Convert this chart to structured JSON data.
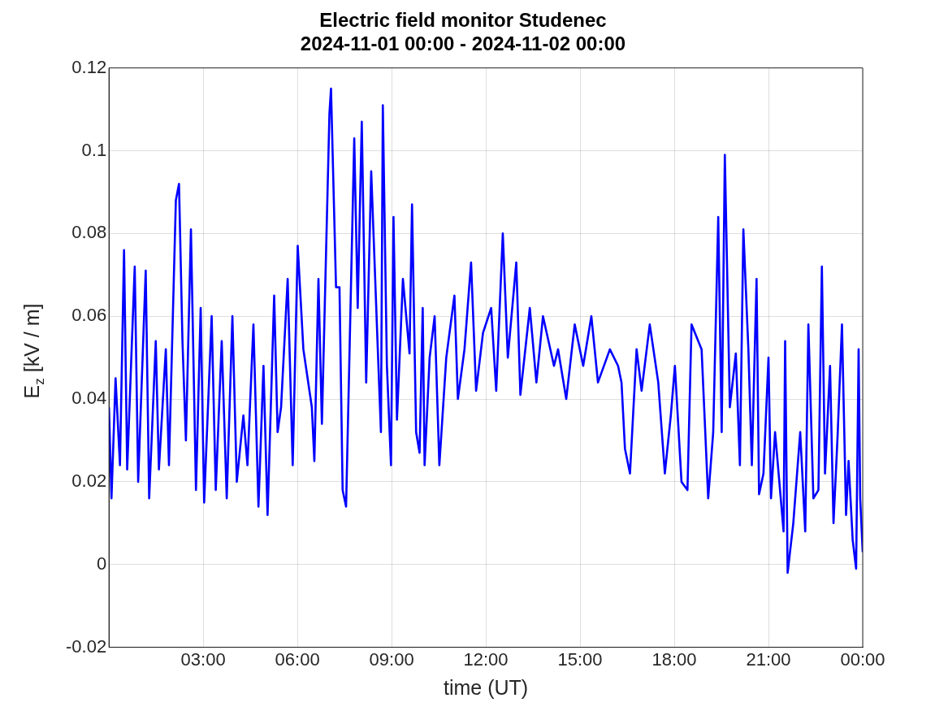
{
  "chart_data": {
    "type": "line",
    "title": "Electric field monitor Studenec",
    "subtitle": "2024-11-01 00:00 - 2024-11-02 00:00",
    "xlabel": "time (UT)",
    "ylabel": "E$_{z}$ [kV / m]",
    "xlim": [
      0,
      24
    ],
    "xticks": [
      {
        "value": 3,
        "label": "03:00"
      },
      {
        "value": 6,
        "label": "06:00"
      },
      {
        "value": 9,
        "label": "09:00"
      },
      {
        "value": 12,
        "label": "12:00"
      },
      {
        "value": 15,
        "label": "15:00"
      },
      {
        "value": 18,
        "label": "18:00"
      },
      {
        "value": 21,
        "label": "21:00"
      },
      {
        "value": 24,
        "label": "00:00"
      }
    ],
    "ylim": [
      -0.02,
      0.12
    ],
    "yticks": [
      -0.02,
      0,
      0.02,
      0.04,
      0.06,
      0.08,
      0.1,
      0.12
    ],
    "grid": true,
    "marker": "none",
    "line_style": "solid",
    "series": [
      {
        "color": "#0000ff",
        "x": [
          0,
          0.08,
          0.21,
          0.35,
          0.48,
          0.58,
          0.82,
          0.93,
          1.17,
          1.28,
          1.49,
          1.59,
          1.81,
          1.91,
          2.13,
          2.23,
          2.34,
          2.45,
          2.61,
          2.77,
          2.92,
          3.03,
          3.27,
          3.4,
          3.59,
          3.75,
          3.93,
          4.07,
          4.28,
          4.41,
          4.6,
          4.76,
          4.92,
          5.05,
          5.26,
          5.37,
          5.48,
          5.69,
          5.85,
          6.01,
          6.19,
          6.46,
          6.54,
          6.67,
          6.78,
          7.02,
          7.07,
          7.23,
          7.34,
          7.44,
          7.55,
          7.65,
          7.81,
          7.92,
          8.05,
          8.19,
          8.35,
          8.56,
          8.66,
          8.72,
          8.85,
          8.98,
          9.06,
          9.17,
          9.36,
          9.57,
          9.65,
          9.78,
          9.89,
          9.99,
          10.05,
          10.21,
          10.37,
          10.52,
          10.74,
          11.0,
          11.11,
          11.32,
          11.53,
          11.69,
          11.91,
          12.17,
          12.33,
          12.54,
          12.7,
          12.97,
          13.1,
          13.4,
          13.61,
          13.82,
          14.17,
          14.3,
          14.56,
          14.83,
          15.1,
          15.36,
          15.57,
          15.95,
          16.21,
          16.32,
          16.43,
          16.59,
          16.8,
          16.96,
          17.22,
          17.49,
          17.7,
          17.89,
          18.02,
          18.23,
          18.42,
          18.55,
          18.87,
          19.08,
          19.24,
          19.4,
          19.51,
          19.61,
          19.77,
          19.96,
          20.09,
          20.2,
          20.36,
          20.47,
          20.62,
          20.7,
          20.84,
          21.0,
          21.08,
          21.21,
          21.48,
          21.53,
          21.61,
          21.79,
          22.01,
          22.17,
          22.27,
          22.43,
          22.59,
          22.7,
          22.8,
          22.96,
          23.07,
          23.2,
          23.34,
          23.47,
          23.55,
          23.68,
          23.79,
          23.87,
          23.92,
          24
        ],
        "values": [
          0.038,
          0.016,
          0.045,
          0.024,
          0.076,
          0.023,
          0.072,
          0.02,
          0.071,
          0.016,
          0.054,
          0.023,
          0.052,
          0.024,
          0.088,
          0.092,
          0.054,
          0.03,
          0.081,
          0.018,
          0.062,
          0.015,
          0.06,
          0.018,
          0.054,
          0.016,
          0.06,
          0.02,
          0.036,
          0.024,
          0.058,
          0.014,
          0.048,
          0.012,
          0.065,
          0.032,
          0.038,
          0.069,
          0.024,
          0.077,
          0.052,
          0.038,
          0.025,
          0.069,
          0.034,
          0.109,
          0.115,
          0.067,
          0.067,
          0.018,
          0.014,
          0.048,
          0.103,
          0.062,
          0.107,
          0.044,
          0.095,
          0.052,
          0.032,
          0.111,
          0.048,
          0.024,
          0.084,
          0.035,
          0.069,
          0.051,
          0.087,
          0.032,
          0.027,
          0.062,
          0.024,
          0.05,
          0.06,
          0.024,
          0.05,
          0.065,
          0.04,
          0.052,
          0.073,
          0.042,
          0.056,
          0.062,
          0.042,
          0.08,
          0.05,
          0.073,
          0.041,
          0.062,
          0.044,
          0.06,
          0.048,
          0.052,
          0.04,
          0.058,
          0.048,
          0.06,
          0.044,
          0.052,
          0.048,
          0.044,
          0.028,
          0.022,
          0.052,
          0.042,
          0.058,
          0.044,
          0.022,
          0.036,
          0.048,
          0.02,
          0.018,
          0.058,
          0.052,
          0.016,
          0.032,
          0.084,
          0.032,
          0.099,
          0.038,
          0.051,
          0.024,
          0.081,
          0.052,
          0.024,
          0.069,
          0.017,
          0.022,
          0.05,
          0.016,
          0.032,
          0.008,
          0.054,
          -0.002,
          0.01,
          0.032,
          0.008,
          0.058,
          0.016,
          0.018,
          0.072,
          0.022,
          0.048,
          0.01,
          0.031,
          0.058,
          0.012,
          0.025,
          0.006,
          -0.001,
          0.052,
          0.016,
          0.003
        ]
      }
    ]
  }
}
